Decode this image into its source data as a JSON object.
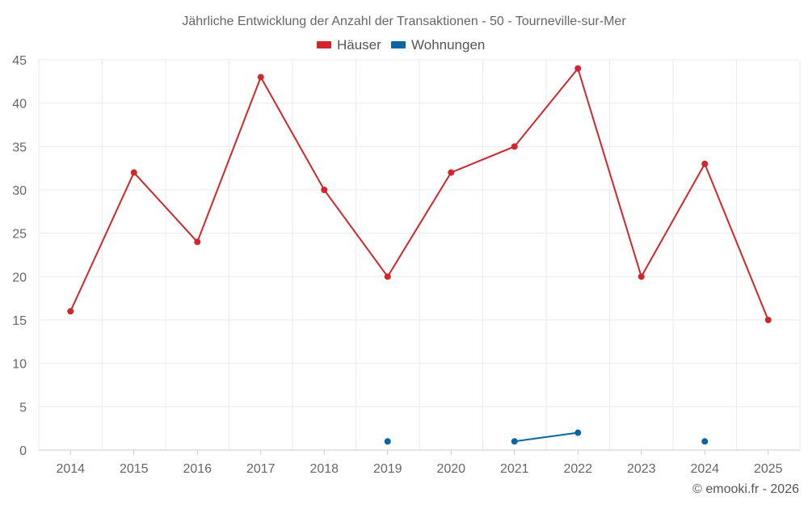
{
  "chart_data": {
    "type": "line",
    "title": "Jährliche Entwicklung der Anzahl der Transaktionen - 50 - Tourneville-sur-Mer",
    "x": [
      "2014",
      "2015",
      "2016",
      "2017",
      "2018",
      "2019",
      "2020",
      "2021",
      "2022",
      "2023",
      "2024",
      "2025"
    ],
    "ylim": [
      0,
      45
    ],
    "yticks": [
      "0",
      "5",
      "10",
      "15",
      "20",
      "25",
      "30",
      "35",
      "40",
      "45"
    ],
    "grid": true,
    "legend_position": "top-center",
    "series": [
      {
        "name": "Häuser",
        "color": "#d0262c",
        "values": [
          16,
          32,
          24,
          43,
          30,
          20,
          32,
          35,
          44,
          20,
          33,
          15
        ]
      },
      {
        "name": "Wohnungen",
        "color": "#0b65a0",
        "values": [
          null,
          null,
          null,
          null,
          null,
          1,
          null,
          1,
          2,
          null,
          1,
          null
        ]
      }
    ]
  },
  "credit": "© emooki.fr - 2026"
}
